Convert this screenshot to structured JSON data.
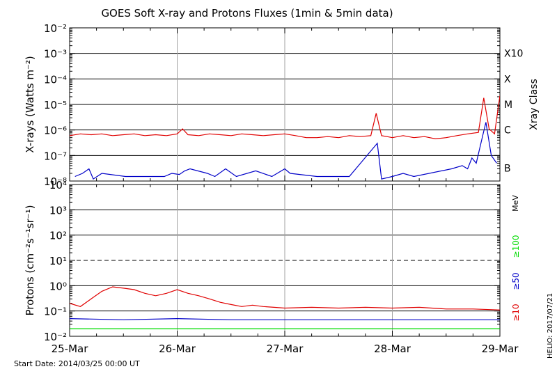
{
  "title": "GOES Soft X-ray and Protons Fluxes   (1min & 5min data)",
  "start_date": "Start Date: 2014/03/25 00:00 UT",
  "credit": "HELIO: 2017/07/21",
  "chart_data": [
    {
      "type": "line",
      "name": "xray",
      "ylabel": "X-rays (Watts m⁻²)",
      "yscale": "log",
      "ylim_exp": [
        -8,
        -2
      ],
      "ytick_exponents": [
        -8,
        -7,
        -6,
        -5,
        -4,
        -3,
        -2
      ],
      "xlim_days": [
        0,
        4
      ],
      "x_categories": [
        "25-Mar",
        "26-Mar",
        "27-Mar",
        "28-Mar",
        "29-Mar"
      ],
      "class_axis_label": "Xray Class",
      "class_labels": [
        {
          "label": "B",
          "exp": -7.5
        },
        {
          "label": "C",
          "exp": -6
        },
        {
          "label": "M",
          "exp": -5
        },
        {
          "label": "X",
          "exp": -4
        },
        {
          "label": "X10",
          "exp": -3
        }
      ],
      "series": [
        {
          "color": "#e00000",
          "x": [
            0.0,
            0.1,
            0.2,
            0.3,
            0.4,
            0.5,
            0.6,
            0.7,
            0.8,
            0.9,
            1.0,
            1.05,
            1.1,
            1.2,
            1.3,
            1.4,
            1.5,
            1.6,
            1.7,
            1.8,
            1.9,
            2.0,
            2.1,
            2.2,
            2.3,
            2.4,
            2.5,
            2.6,
            2.7,
            2.8,
            2.85,
            2.9,
            2.95,
            3.0,
            3.1,
            3.2,
            3.3,
            3.4,
            3.5,
            3.6,
            3.7,
            3.8,
            3.85,
            3.9,
            3.95,
            4.0
          ],
          "y": [
            6e-07,
            7e-07,
            6.5e-07,
            7e-07,
            6e-07,
            6.5e-07,
            7e-07,
            6e-07,
            6.5e-07,
            6e-07,
            7e-07,
            1.1e-06,
            6.5e-07,
            6e-07,
            7e-07,
            6.5e-07,
            6e-07,
            7e-07,
            6.5e-07,
            6e-07,
            6.5e-07,
            7e-07,
            6e-07,
            5e-07,
            5e-07,
            5.5e-07,
            5e-07,
            6e-07,
            5.5e-07,
            6e-07,
            4.5e-06,
            6e-07,
            5.5e-07,
            5e-07,
            6e-07,
            5e-07,
            5.5e-07,
            4.5e-07,
            5e-07,
            6e-07,
            7e-07,
            8e-07,
            1.8e-05,
            1.1e-06,
            7e-07,
            2.2e-05
          ]
        },
        {
          "color": "#0000c8",
          "x": [
            0.05,
            0.12,
            0.18,
            0.22,
            0.3,
            0.52,
            0.88,
            0.95,
            1.02,
            1.07,
            1.12,
            1.28,
            1.35,
            1.45,
            1.55,
            1.73,
            1.88,
            2.0,
            2.05,
            2.3,
            2.52,
            2.6,
            2.86,
            2.9,
            3.0,
            3.1,
            3.2,
            3.55,
            3.65,
            3.7,
            3.74,
            3.78,
            3.84,
            3.87,
            3.92,
            3.97
          ],
          "y": [
            1.5e-08,
            2e-08,
            3e-08,
            1.2e-08,
            2e-08,
            1.5e-08,
            1.5e-08,
            2e-08,
            1.8e-08,
            2.5e-08,
            3e-08,
            2e-08,
            1.5e-08,
            3e-08,
            1.5e-08,
            2.5e-08,
            1.5e-08,
            3e-08,
            2e-08,
            1.5e-08,
            1.5e-08,
            1.5e-08,
            3e-07,
            1.2e-08,
            1.5e-08,
            2e-08,
            1.5e-08,
            3e-08,
            4e-08,
            3e-08,
            8e-08,
            5e-08,
            6e-07,
            2e-06,
            1e-07,
            5e-08
          ]
        }
      ]
    },
    {
      "type": "line",
      "name": "protons",
      "ylabel": "Protons (cm⁻²s⁻¹sr⁻¹)",
      "yscale": "log",
      "ylim_exp": [
        -2,
        4
      ],
      "ytick_exponents": [
        -2,
        -1,
        0,
        1,
        2,
        3,
        4
      ],
      "dashed_threshold_exp": 1,
      "xlim_days": [
        0,
        4
      ],
      "x_categories": [
        "25-Mar",
        "26-Mar",
        "27-Mar",
        "28-Mar",
        "29-Mar"
      ],
      "energy_unit": "MeV",
      "series": [
        {
          "name": "≥10",
          "color": "#e00000",
          "x": [
            0.0,
            0.1,
            0.2,
            0.3,
            0.4,
            0.5,
            0.6,
            0.7,
            0.8,
            0.9,
            1.0,
            1.1,
            1.2,
            1.3,
            1.4,
            1.5,
            1.6,
            1.7,
            1.8,
            1.9,
            2.0,
            2.25,
            2.5,
            2.75,
            3.0,
            3.25,
            3.5,
            3.75,
            4.0
          ],
          "y": [
            0.2,
            0.15,
            0.3,
            0.6,
            0.9,
            0.8,
            0.7,
            0.5,
            0.4,
            0.5,
            0.7,
            0.5,
            0.4,
            0.3,
            0.22,
            0.18,
            0.15,
            0.17,
            0.15,
            0.14,
            0.13,
            0.14,
            0.13,
            0.14,
            0.13,
            0.14,
            0.12,
            0.12,
            0.11
          ]
        },
        {
          "name": "≥50",
          "color": "#0000c8",
          "x": [
            0.0,
            0.5,
            1.0,
            1.5,
            2.0,
            2.5,
            3.0,
            3.5,
            4.0
          ],
          "y": [
            0.05,
            0.045,
            0.05,
            0.045,
            0.045,
            0.045,
            0.045,
            0.045,
            0.045
          ]
        },
        {
          "name": "≥100",
          "color": "#00dc00",
          "x": [
            0.0,
            0.5,
            1.0,
            1.5,
            2.0,
            2.5,
            3.0,
            3.5,
            4.0
          ],
          "y": [
            0.02,
            0.02,
            0.02,
            0.02,
            0.02,
            0.02,
            0.02,
            0.02,
            0.02
          ]
        }
      ]
    }
  ]
}
